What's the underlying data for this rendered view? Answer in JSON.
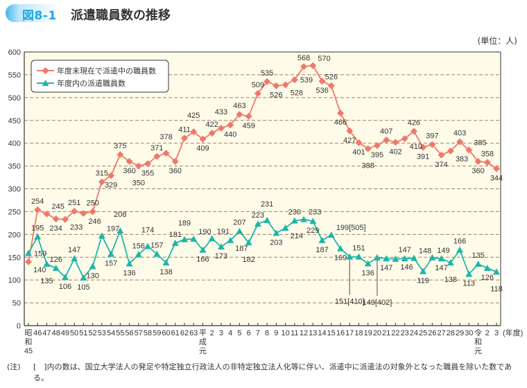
{
  "header": {
    "figure_number": "図8-1",
    "title": "派遣職員数の推移",
    "unit": "(単位：人)"
  },
  "note": {
    "label": "(注)",
    "text": "[　]内の数は、国立大学法人の発足や特定独立行政法人の非特定独立法人化等に伴い、派遣中に派遣法の対象外となった職員を除いた数である。"
  },
  "colors": {
    "red_series": "#f0786a",
    "green_series": "#1fb5a8",
    "plot_background": "#fffbe9",
    "grid": "#a08060",
    "badge": "#22a6e6"
  },
  "chart_data": {
    "type": "line",
    "title": "派遣職員数の推移",
    "xlabel": "(年度)",
    "ylabel": "",
    "ylim": [
      0,
      600
    ],
    "yticks": [
      0,
      50,
      100,
      150,
      200,
      250,
      300,
      350,
      400,
      450,
      500,
      550,
      600
    ],
    "grid": "horizontal dashed",
    "legend": "top-left",
    "categories": [
      "昭\n和\n45",
      "46",
      "47",
      "48",
      "49",
      "50",
      "51",
      "52",
      "53",
      "54",
      "55",
      "56",
      "57",
      "58",
      "59",
      "60",
      "61",
      "62",
      "63",
      "平\n成\n元",
      "2",
      "3",
      "4",
      "5",
      "6",
      "7",
      "8",
      "9",
      "10",
      "11",
      "12",
      "13",
      "14",
      "15",
      "16",
      "17",
      "18",
      "19",
      "20",
      "21",
      "22",
      "23",
      "24",
      "25",
      "26",
      "27",
      "28",
      "29",
      "30",
      "令\n和\n元",
      "2",
      "3"
    ],
    "series": [
      {
        "name": "年度末現在で派遣中の職員数",
        "marker": "diamond",
        "values": [
          140,
          254,
          245,
          234,
          233,
          251,
          246,
          250,
          315,
          329,
          375,
          360,
          350,
          355,
          371,
          378,
          360,
          411,
          425,
          409,
          422,
          433,
          440,
          463,
          459,
          509,
          535,
          526,
          528,
          539,
          568,
          570,
          536,
          526,
          466,
          427,
          401,
          388,
          395,
          407,
          402,
          410,
          426,
          391,
          397,
          374,
          383,
          403,
          385,
          360,
          358,
          344
        ],
        "labels": [
          "140",
          "254",
          "245",
          "234",
          "233",
          "251",
          "246",
          "250",
          "315",
          "329",
          "375",
          "360",
          "350",
          "355",
          "371",
          "378",
          "360",
          "411",
          "425",
          "409",
          "422",
          "433",
          "440",
          "463",
          "459",
          "509",
          "535",
          "526",
          "528",
          "539",
          "568",
          "570",
          "536",
          "526",
          "466",
          "427",
          "401",
          "388",
          "395",
          "407",
          "402",
          "410",
          "426",
          "391",
          "397",
          "374",
          "383",
          "403",
          "385",
          "360",
          "358",
          "344"
        ]
      },
      {
        "name": "年度内の派遣職員数",
        "marker": "triangle",
        "values": [
          159,
          195,
          135,
          126,
          106,
          147,
          105,
          130,
          197,
          157,
          208,
          136,
          156,
          174,
          157,
          138,
          181,
          189,
          190,
          166,
          191,
          173,
          187,
          207,
          182,
          223,
          231,
          203,
          214,
          230,
          233,
          229,
          187,
          199,
          169,
          151,
          151,
          136,
          149,
          147,
          146,
          147,
          148,
          119,
          149,
          147,
          138,
          166,
          113,
          135,
          126,
          118
        ],
        "labels": [
          "159",
          "195",
          "135",
          "126",
          "106",
          "147",
          "105",
          "130",
          "197",
          "157",
          "208",
          "136",
          "156",
          "174",
          "157",
          "138",
          "181",
          "189",
          "190",
          "166",
          "191",
          "173",
          "187",
          "207",
          "182",
          "223",
          "231",
          "203",
          "214",
          "230",
          "233",
          "229",
          "187",
          "199[505]",
          "169",
          "151[410]",
          "151",
          "136",
          "149[402]",
          "147",
          "146",
          "147",
          "148",
          "119",
          "149",
          "147",
          "138",
          "166",
          "113",
          "135",
          "126",
          "118"
        ]
      }
    ]
  }
}
